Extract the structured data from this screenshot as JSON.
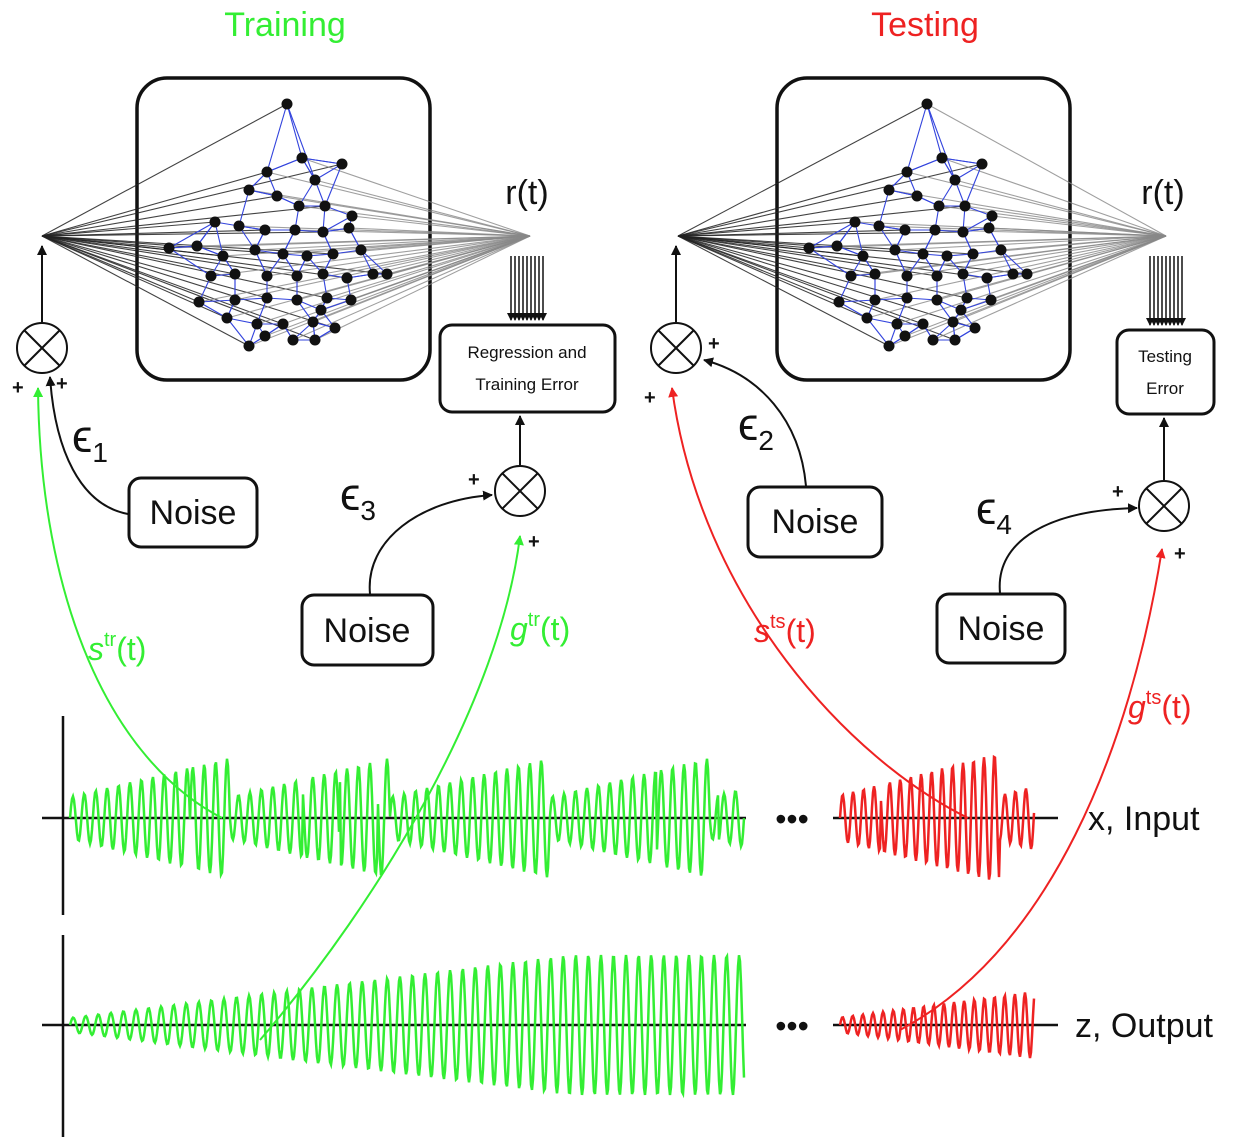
{
  "colors": {
    "training": "#33ee33",
    "testing": "#ee2222",
    "network_edge": "#3344dd",
    "node": "#111111",
    "ink": "#111111"
  },
  "training": {
    "title": "Training",
    "output_label": "r(t)",
    "regression_box": {
      "line1": "Regression and",
      "line2": "Training Error"
    },
    "noise_input_label": "Noise",
    "noise_target_label": "Noise",
    "epsilon_input": {
      "symbol": "ϵ",
      "sub": "1"
    },
    "epsilon_target": {
      "symbol": "ϵ",
      "sub": "3"
    },
    "signal_s": {
      "base": "s",
      "sup": "tr",
      "arg": "(t)"
    },
    "signal_g": {
      "base": "g",
      "sup": "tr",
      "arg": "(t)"
    }
  },
  "testing": {
    "title": "Testing",
    "output_label": "r(t)",
    "error_box": {
      "line1": "Testing",
      "line2": "Error"
    },
    "noise_input_label": "Noise",
    "noise_target_label": "Noise",
    "epsilon_input": {
      "symbol": "ϵ",
      "sub": "2"
    },
    "epsilon_target": {
      "symbol": "ϵ",
      "sub": "4"
    },
    "signal_s": {
      "base": "s",
      "sup": "ts",
      "arg": "(t)"
    },
    "signal_g": {
      "base": "g",
      "sup": "ts",
      "arg": "(t)"
    }
  },
  "plus_sign": "+",
  "ellipsis": "•••",
  "timeseries": {
    "input_label": "x, Input",
    "output_label": "z, Output"
  },
  "icons": {
    "summing_junction": "circle-times-icon",
    "reservoir": "network-graph-icon"
  }
}
